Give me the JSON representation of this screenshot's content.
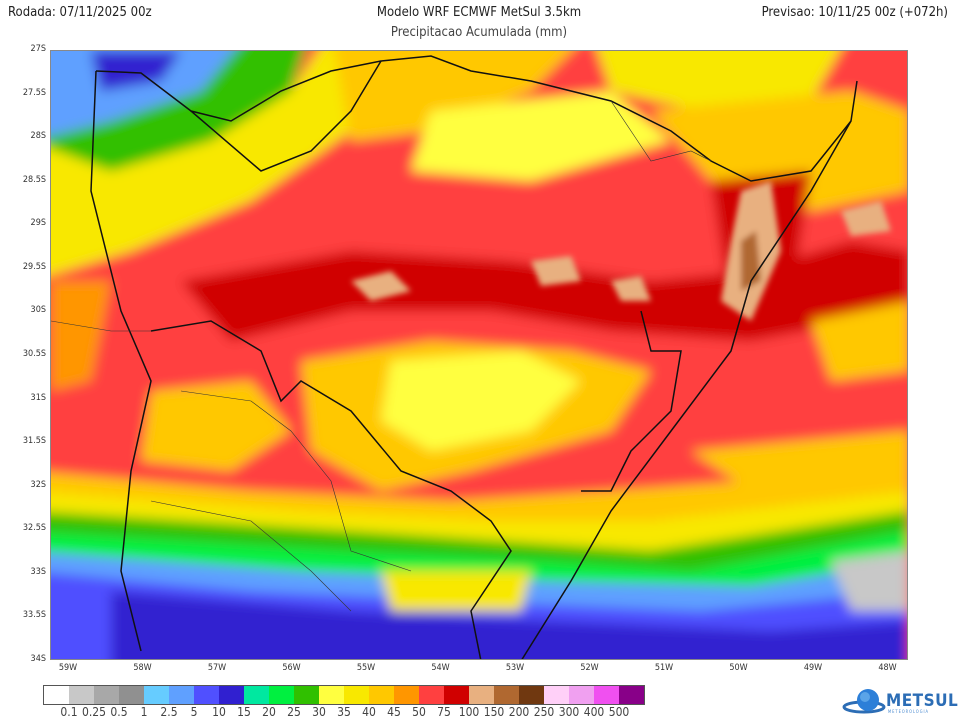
{
  "header": {
    "run": "Rodada: 07/11/2025 00z",
    "model": "Modelo WRF ECMWF MetSul 3.5km",
    "valid": "Previsao: 10/11/25 00z (+072h)",
    "variable": "Precipitacao Acumulada (mm)"
  },
  "map": {
    "lat_labels": [
      "27S",
      "27.5S",
      "28S",
      "28.5S",
      "29S",
      "29.5S",
      "30S",
      "30.5S",
      "31S",
      "31.5S",
      "32S",
      "32.5S",
      "33S",
      "33.5S",
      "34S"
    ],
    "lon_labels": [
      "59W",
      "58W",
      "57W",
      "56W",
      "55W",
      "54W",
      "53W",
      "52W",
      "51W",
      "50W",
      "49W",
      "48W"
    ]
  },
  "legend": {
    "colors": [
      "#ffffff",
      "#c8c8c8",
      "#a8a8a8",
      "#909090",
      "#66ccff",
      "#5fa0ff",
      "#5050ff",
      "#3020d0",
      "#00e8a0",
      "#00f040",
      "#30c000",
      "#ffff40",
      "#f8e800",
      "#ffc800",
      "#ff9600",
      "#ff4040",
      "#d00000",
      "#e8b080",
      "#b06830",
      "#703810",
      "#ffd0f8",
      "#f0a0f0",
      "#f050f0",
      "#880088"
    ],
    "labels": [
      "0.1",
      "0.25",
      "0.5",
      "1",
      "2.5",
      "5",
      "10",
      "15",
      "20",
      "25",
      "30",
      "35",
      "40",
      "45",
      "50",
      "75",
      "100",
      "150",
      "200",
      "250",
      "300",
      "400",
      "500"
    ]
  },
  "logo": {
    "text": "METSUL",
    "subtext": "METEOROLOGIA"
  }
}
